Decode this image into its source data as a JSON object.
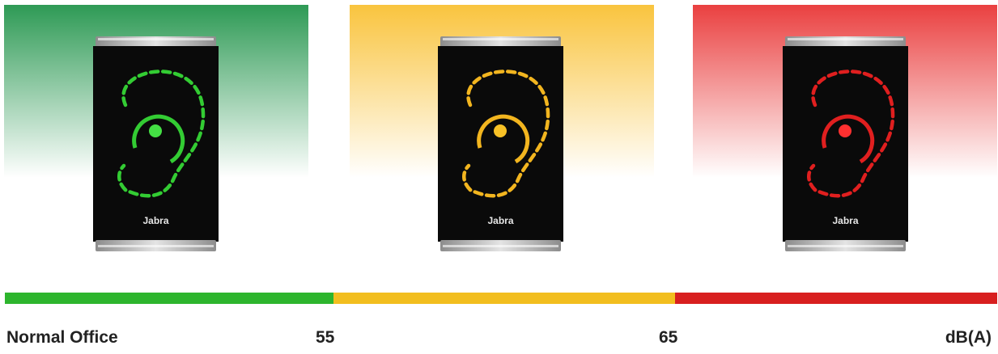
{
  "colors": {
    "green": "#2db52d",
    "yellow": "#f2be1f",
    "red": "#d81f1f"
  },
  "devices": [
    {
      "state": "green",
      "brand": "Jabra",
      "icon": "ear-icon"
    },
    {
      "state": "yellow",
      "brand": "Jabra",
      "icon": "ear-icon"
    },
    {
      "state": "red",
      "brand": "Jabra",
      "icon": "ear-icon"
    }
  ],
  "scale": {
    "start_label": "Normal Office",
    "threshold_1": "55",
    "threshold_2": "65",
    "unit": "dB(A)"
  }
}
